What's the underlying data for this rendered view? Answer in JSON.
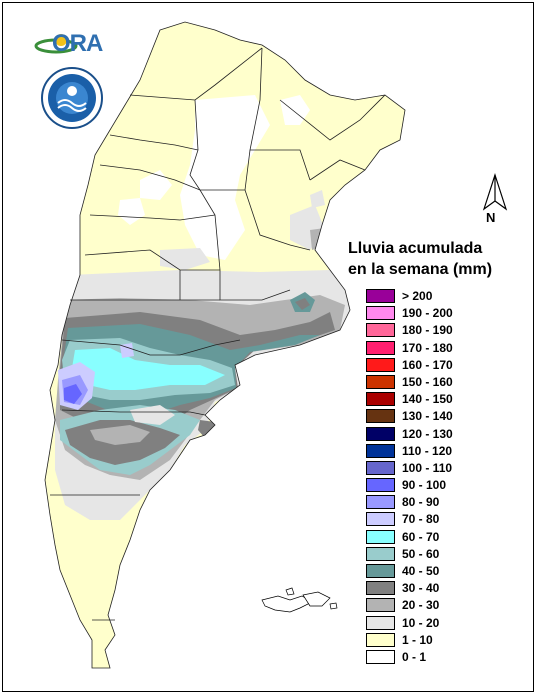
{
  "legend": {
    "title_line1": "Lluvia acumulada",
    "title_line2": "en la semana (mm)",
    "items": [
      {
        "label": "> 200",
        "color": "#990099"
      },
      {
        "label": "190 - 200",
        "color": "#ff88ee"
      },
      {
        "label": "180 - 190",
        "color": "#ff6699"
      },
      {
        "label": "170 - 180",
        "color": "#ff1f6f"
      },
      {
        "label": "160 - 170",
        "color": "#ff1a1a"
      },
      {
        "label": "150 - 160",
        "color": "#cc3300"
      },
      {
        "label": "140 - 150",
        "color": "#aa0000"
      },
      {
        "label": "130 - 140",
        "color": "#663311"
      },
      {
        "label": "120 - 130",
        "color": "#000066"
      },
      {
        "label": "110 - 120",
        "color": "#003399"
      },
      {
        "label": "100 - 110",
        "color": "#6666cc"
      },
      {
        "label": "90 - 100",
        "color": "#6666ff"
      },
      {
        "label": "80 - 90",
        "color": "#9999ff"
      },
      {
        "label": "70 - 80",
        "color": "#ccccff"
      },
      {
        "label": "60 - 70",
        "color": "#88ffff"
      },
      {
        "label": "50 - 60",
        "color": "#99cccc"
      },
      {
        "label": "40 - 50",
        "color": "#669999"
      },
      {
        "label": "30 - 40",
        "color": "#808080"
      },
      {
        "label": "20 - 30",
        "color": "#b3b3b3"
      },
      {
        "label": "10 - 20",
        "color": "#e6e6e6"
      },
      {
        "label": "1 - 10",
        "color": "#ffffcc"
      },
      {
        "label": "0 - 1",
        "color": "#ffffff"
      }
    ]
  },
  "logo": {
    "text": "ORA"
  },
  "north_arrow": {
    "label": "N"
  }
}
